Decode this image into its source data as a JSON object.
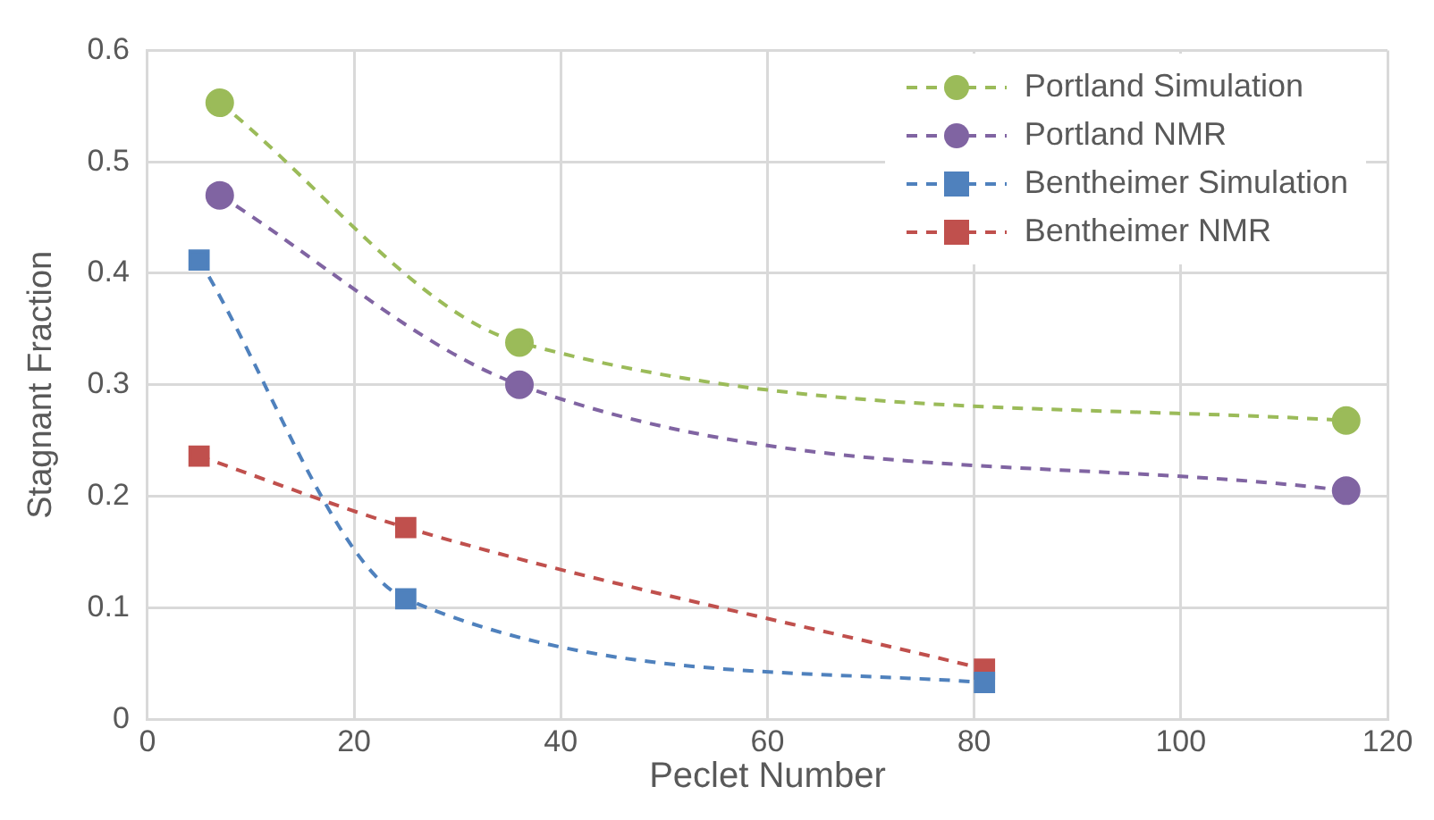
{
  "chart_data": {
    "type": "line",
    "xlabel": "Peclet Number",
    "ylabel": "Stagnant Fraction",
    "xlim": [
      0,
      120
    ],
    "xticks": [
      0,
      20,
      40,
      60,
      80,
      100,
      120
    ],
    "ylim": [
      0,
      0.6
    ],
    "yticks": [
      0,
      0.1,
      0.2,
      0.3,
      0.4,
      0.5,
      0.6
    ],
    "grid": true,
    "legend": "top right",
    "line_style": "dashed",
    "series": [
      {
        "name": "Portland Simulation",
        "color": "#9bbb59",
        "marker": "circle",
        "x": [
          7,
          36,
          116
        ],
        "values": [
          0.553,
          0.338,
          0.268
        ]
      },
      {
        "name": "Portland NMR",
        "color": "#8064a2",
        "marker": "circle",
        "x": [
          7,
          36,
          116
        ],
        "values": [
          0.47,
          0.3,
          0.205
        ]
      },
      {
        "name": "Bentheimer Simulation",
        "color": "#4f81bd",
        "marker": "square",
        "x": [
          5,
          25,
          81
        ],
        "values": [
          0.412,
          0.108,
          0.033
        ]
      },
      {
        "name": "Bentheimer NMR",
        "color": "#c0504d",
        "marker": "square",
        "x": [
          5,
          25,
          81
        ],
        "values": [
          0.236,
          0.172,
          0.045
        ]
      }
    ]
  }
}
